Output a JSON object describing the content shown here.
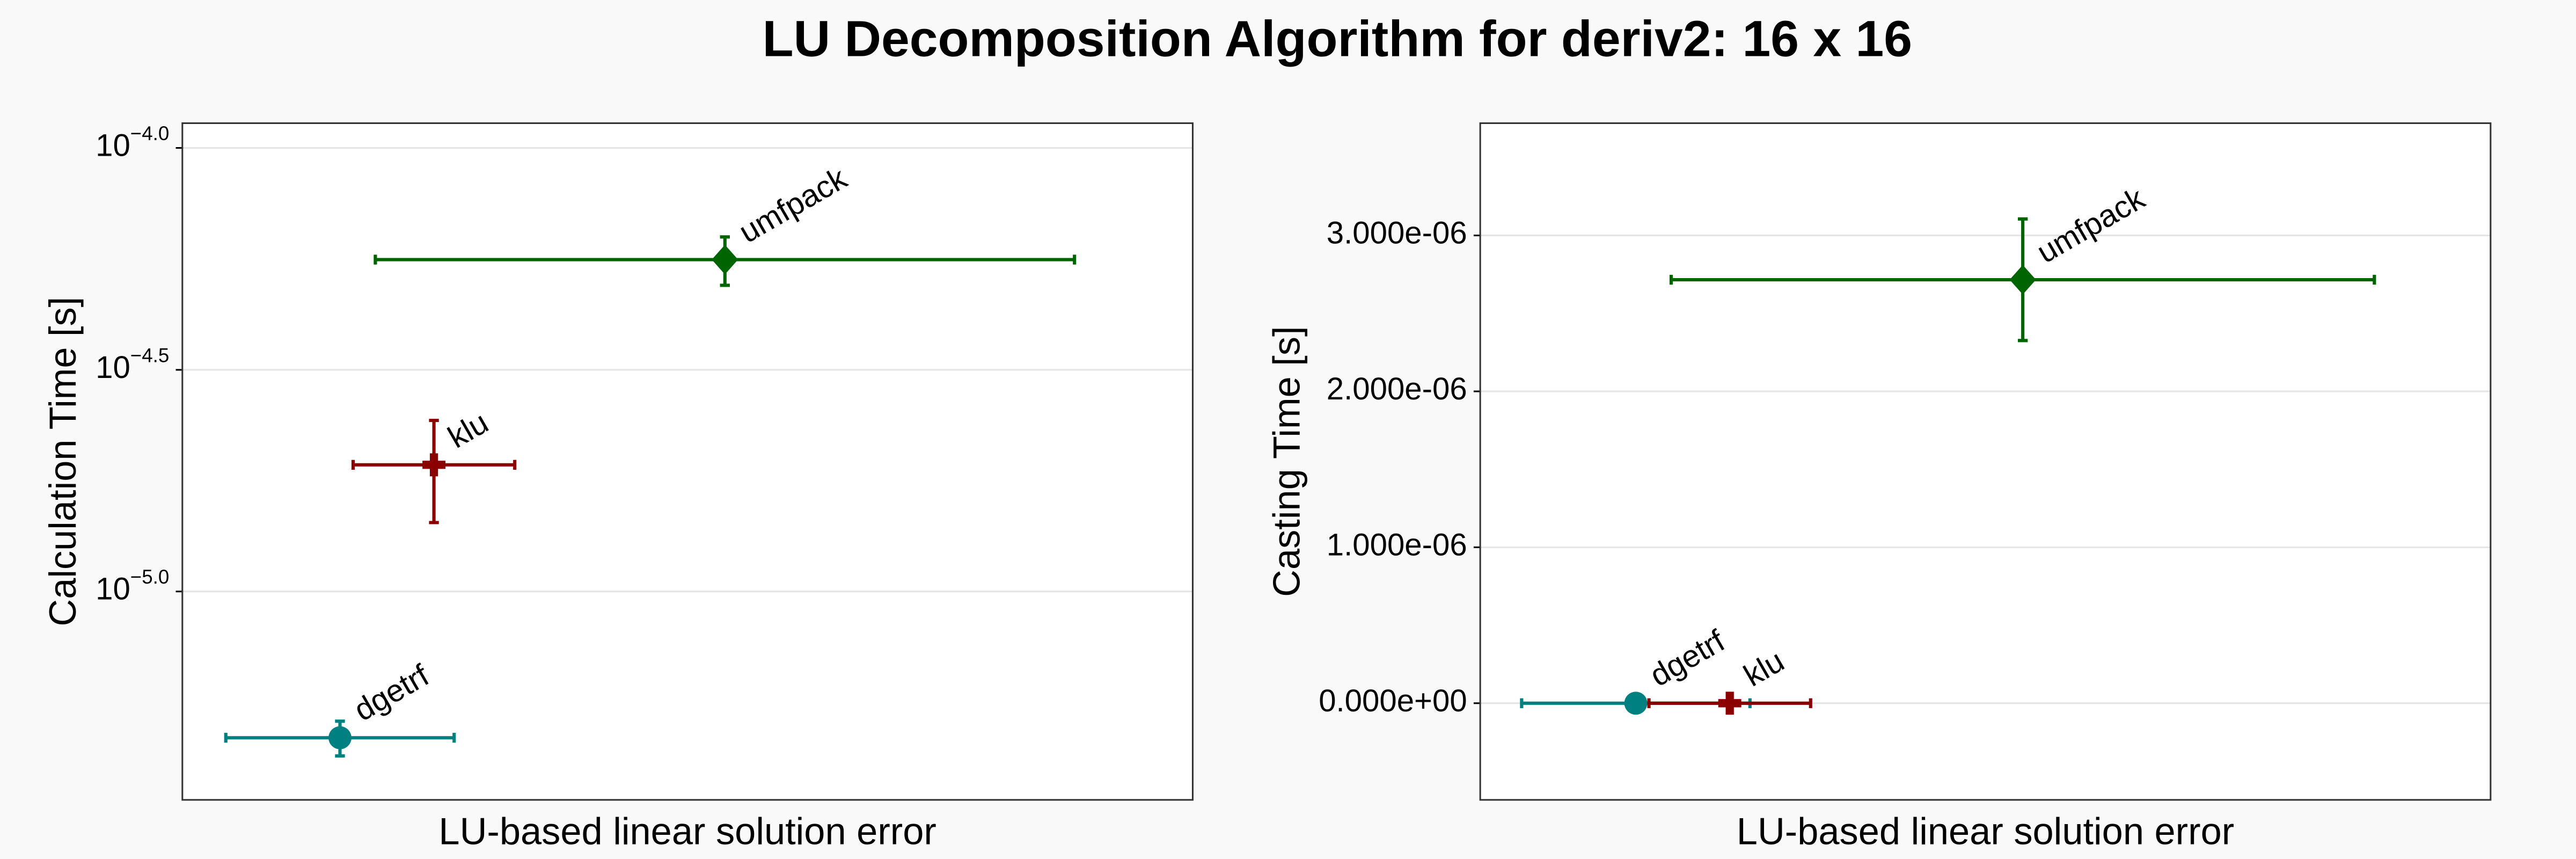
{
  "title": "LU Decomposition Algorithm for deriv2: 16 x 16",
  "chart_data": [
    {
      "type": "scatter",
      "ylabel": "Calculation Time [s]",
      "xlabel": "LU-based linear solution error",
      "ylog": true,
      "grid": true,
      "xlim": [
        0,
        100
      ],
      "ylim": [
        3.39e-06,
        0.0001137
      ],
      "yticks": [
        {
          "value": 0.0001,
          "label": "10",
          "exponent": "−4.0"
        },
        {
          "value": 3.16e-05,
          "label": "10",
          "exponent": "−4.5"
        },
        {
          "value": 1e-05,
          "label": "10",
          "exponent": "−5.0"
        }
      ],
      "series": [
        {
          "name": "dgetrf",
          "color": "#008080",
          "marker": "circle",
          "x": [
            15.6
          ],
          "values": [
            4.68e-06
          ],
          "xerr": [
            11.3
          ],
          "yerr": [
            4.2e-07
          ]
        },
        {
          "name": "klu",
          "color": "#8b0000",
          "marker": "cross",
          "x": [
            24.9
          ],
          "values": [
            1.93e-05
          ],
          "xerr": [
            8.0
          ],
          "yerr": [
            5e-06
          ]
        },
        {
          "name": "umfpack",
          "color": "#006400",
          "marker": "diamond",
          "x": [
            53.7
          ],
          "values": [
            5.6e-05
          ],
          "xerr": [
            34.6
          ],
          "yerr": [
            7e-06
          ]
        }
      ]
    },
    {
      "type": "scatter",
      "ylabel": "Casting Time [s]",
      "xlabel": "LU-based linear solution error",
      "ylog": false,
      "grid": true,
      "xlim": [
        0,
        100
      ],
      "ylim": [
        -6.2e-07,
        3.72e-06
      ],
      "yticks": [
        {
          "value": 0,
          "label": "0.000e+00"
        },
        {
          "value": 1e-06,
          "label": "1.000e-06"
        },
        {
          "value": 2e-06,
          "label": "2.000e-06"
        },
        {
          "value": 3e-06,
          "label": "3.000e-06"
        }
      ],
      "series": [
        {
          "name": "dgetrf",
          "color": "#008080",
          "marker": "circle",
          "x": [
            15.4
          ],
          "values": [
            0
          ],
          "xerr": [
            11.3
          ],
          "yerr": [
            0
          ]
        },
        {
          "name": "klu",
          "color": "#8b0000",
          "marker": "cross",
          "x": [
            24.7
          ],
          "values": [
            0
          ],
          "xerr": [
            8.0
          ],
          "yerr": [
            0
          ]
        },
        {
          "name": "umfpack",
          "color": "#006400",
          "marker": "diamond",
          "x": [
            53.7
          ],
          "values": [
            2.716e-06
          ],
          "xerr": [
            34.8
          ],
          "yerr": [
            3.9e-07
          ]
        }
      ]
    }
  ]
}
